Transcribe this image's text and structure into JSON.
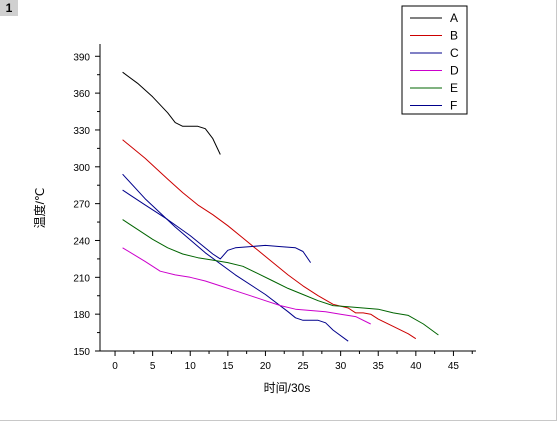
{
  "page_label": "1",
  "chart_data": {
    "type": "line",
    "title": "",
    "xlabel": "时间/30s",
    "ylabel": "温度/℃",
    "xlim": [
      -2,
      48
    ],
    "ylim": [
      150,
      400
    ],
    "xticks": [
      "0",
      "5",
      "10",
      "15",
      "20",
      "25",
      "30",
      "35",
      "40",
      "45"
    ],
    "yticks": [
      "150",
      "180",
      "210",
      "240",
      "270",
      "300",
      "330",
      "360",
      "390"
    ],
    "legend_position": "top-right",
    "grid": false,
    "series": [
      {
        "name": "A",
        "color": "#000000",
        "points": [
          [
            1,
            377
          ],
          [
            3,
            368
          ],
          [
            5,
            357
          ],
          [
            7,
            344
          ],
          [
            8,
            336
          ],
          [
            9,
            333
          ],
          [
            10,
            333
          ],
          [
            11,
            333
          ],
          [
            12,
            331
          ],
          [
            13,
            323
          ],
          [
            14,
            310
          ]
        ]
      },
      {
        "name": "B",
        "color": "#cc0000",
        "points": [
          [
            1,
            322
          ],
          [
            4,
            307
          ],
          [
            7,
            290
          ],
          [
            9,
            279
          ],
          [
            11,
            269
          ],
          [
            13,
            261
          ],
          [
            15,
            252
          ],
          [
            17,
            242
          ],
          [
            19,
            232
          ],
          [
            21,
            222
          ],
          [
            23,
            212
          ],
          [
            25,
            203
          ],
          [
            27,
            195
          ],
          [
            29,
            188
          ],
          [
            31,
            185
          ],
          [
            32,
            181
          ],
          [
            33,
            181
          ],
          [
            34,
            180
          ],
          [
            35,
            176
          ],
          [
            37,
            170
          ],
          [
            39,
            164
          ],
          [
            40,
            160
          ]
        ]
      },
      {
        "name": "C",
        "color": "#00008b",
        "points": [
          [
            1,
            294
          ],
          [
            4,
            274
          ],
          [
            8,
            251
          ],
          [
            12,
            230
          ],
          [
            16,
            212
          ],
          [
            20,
            196
          ],
          [
            23,
            182
          ],
          [
            24,
            177
          ],
          [
            25,
            175
          ],
          [
            26,
            175
          ],
          [
            27,
            175
          ],
          [
            28,
            173
          ],
          [
            29,
            167
          ],
          [
            31,
            158
          ]
        ]
      },
      {
        "name": "D",
        "color": "#cc00cc",
        "points": [
          [
            1,
            234
          ],
          [
            4,
            223
          ],
          [
            6,
            215
          ],
          [
            8,
            212
          ],
          [
            10,
            210
          ],
          [
            12,
            207
          ],
          [
            14,
            203
          ],
          [
            16,
            199
          ],
          [
            18,
            195
          ],
          [
            20,
            191
          ],
          [
            22,
            187
          ],
          [
            24,
            184
          ],
          [
            26,
            183
          ],
          [
            28,
            182
          ],
          [
            30,
            180
          ],
          [
            32,
            178
          ],
          [
            34,
            172
          ]
        ]
      },
      {
        "name": "E",
        "color": "#006400",
        "points": [
          [
            1,
            257
          ],
          [
            3,
            249
          ],
          [
            5,
            241
          ],
          [
            7,
            234
          ],
          [
            9,
            229
          ],
          [
            11,
            226
          ],
          [
            13,
            224
          ],
          [
            15,
            222
          ],
          [
            17,
            219
          ],
          [
            19,
            213
          ],
          [
            21,
            207
          ],
          [
            23,
            201
          ],
          [
            25,
            196
          ],
          [
            27,
            191
          ],
          [
            29,
            187
          ],
          [
            31,
            186
          ],
          [
            33,
            185
          ],
          [
            35,
            184
          ],
          [
            37,
            181
          ],
          [
            39,
            179
          ],
          [
            41,
            172
          ],
          [
            43,
            163
          ]
        ]
      },
      {
        "name": "F",
        "color": "#00008b",
        "points": [
          [
            1,
            281
          ],
          [
            4,
            269
          ],
          [
            7,
            257
          ],
          [
            10,
            244
          ],
          [
            13,
            229
          ],
          [
            14,
            225
          ],
          [
            15,
            232
          ],
          [
            16,
            234
          ],
          [
            18,
            235
          ],
          [
            20,
            236
          ],
          [
            22,
            235
          ],
          [
            24,
            234
          ],
          [
            25,
            231
          ],
          [
            26,
            222
          ]
        ]
      }
    ]
  }
}
